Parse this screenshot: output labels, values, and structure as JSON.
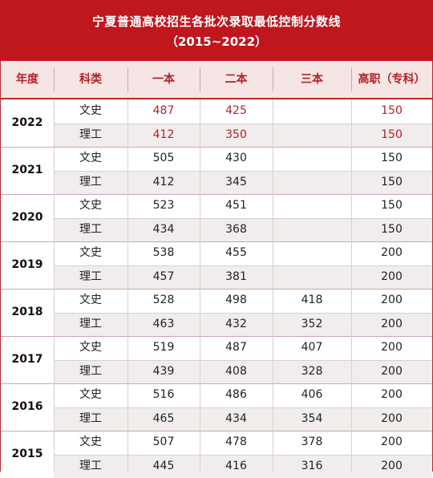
{
  "title": {
    "line1": "宁夏普通高校招生各批次录取最低控制分数线",
    "line2": "（2015~2022）"
  },
  "headers": [
    "年度",
    "科类",
    "一本",
    "二本",
    "三本",
    "高职（专科）"
  ],
  "colors": {
    "accent": "#c0161e",
    "header_bg": "#f5e5e4",
    "alt_row": "#f1eded",
    "highlight_text": "#b52025"
  },
  "years": [
    {
      "year": "2022",
      "highlight": true,
      "rows": [
        {
          "subject": "文史",
          "yiben": "487",
          "erben": "425",
          "sanben": "",
          "gaozhi": "150"
        },
        {
          "subject": "理工",
          "yiben": "412",
          "erben": "350",
          "sanben": "",
          "gaozhi": "150"
        }
      ]
    },
    {
      "year": "2021",
      "highlight": false,
      "rows": [
        {
          "subject": "文史",
          "yiben": "505",
          "erben": "430",
          "sanben": "",
          "gaozhi": "150"
        },
        {
          "subject": "理工",
          "yiben": "412",
          "erben": "345",
          "sanben": "",
          "gaozhi": "150"
        }
      ]
    },
    {
      "year": "2020",
      "highlight": false,
      "rows": [
        {
          "subject": "文史",
          "yiben": "523",
          "erben": "451",
          "sanben": "",
          "gaozhi": "150"
        },
        {
          "subject": "理工",
          "yiben": "434",
          "erben": "368",
          "sanben": "",
          "gaozhi": "150"
        }
      ]
    },
    {
      "year": "2019",
      "highlight": false,
      "rows": [
        {
          "subject": "文史",
          "yiben": "538",
          "erben": "455",
          "sanben": "",
          "gaozhi": "200"
        },
        {
          "subject": "理工",
          "yiben": "457",
          "erben": "381",
          "sanben": "",
          "gaozhi": "200"
        }
      ]
    },
    {
      "year": "2018",
      "highlight": false,
      "rows": [
        {
          "subject": "文史",
          "yiben": "528",
          "erben": "498",
          "sanben": "418",
          "gaozhi": "200"
        },
        {
          "subject": "理工",
          "yiben": "463",
          "erben": "432",
          "sanben": "352",
          "gaozhi": "200"
        }
      ]
    },
    {
      "year": "2017",
      "highlight": false,
      "rows": [
        {
          "subject": "文史",
          "yiben": "519",
          "erben": "487",
          "sanben": "407",
          "gaozhi": "200"
        },
        {
          "subject": "理工",
          "yiben": "439",
          "erben": "408",
          "sanben": "328",
          "gaozhi": "200"
        }
      ]
    },
    {
      "year": "2016",
      "highlight": false,
      "rows": [
        {
          "subject": "文史",
          "yiben": "516",
          "erben": "486",
          "sanben": "406",
          "gaozhi": "200"
        },
        {
          "subject": "理工",
          "yiben": "465",
          "erben": "434",
          "sanben": "354",
          "gaozhi": "200"
        }
      ]
    },
    {
      "year": "2015",
      "highlight": false,
      "rows": [
        {
          "subject": "文史",
          "yiben": "507",
          "erben": "478",
          "sanben": "378",
          "gaozhi": "200"
        },
        {
          "subject": "理工",
          "yiben": "445",
          "erben": "416",
          "sanben": "316",
          "gaozhi": "200"
        }
      ]
    }
  ]
}
